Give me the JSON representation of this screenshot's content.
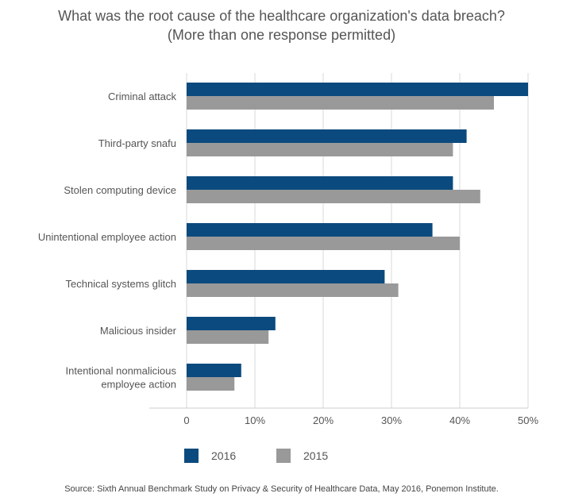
{
  "title_line1": "What was the root cause of the healthcare organization's data breach?",
  "title_line2": "(More than one response permitted)",
  "source": "Source: Sixth Annual Benchmark Study on Privacy & Security of Healthcare Data, May 2016, Ponemon Institute.",
  "colors": {
    "series_2016": "#0b4a7e",
    "series_2015": "#999999",
    "grid": "#d9d9d9",
    "axis": "#cccccc",
    "text": "#555555"
  },
  "legend": [
    {
      "label": "2016",
      "color": "#0b4a7e"
    },
    {
      "label": "2015",
      "color": "#999999"
    }
  ],
  "chart_data": {
    "type": "bar",
    "orientation": "horizontal",
    "title": "What was the root cause of the healthcare organization's data breach? (More than one response permitted)",
    "categories": [
      [
        "Criminal attack"
      ],
      [
        "Third-party snafu"
      ],
      [
        "Stolen computing device"
      ],
      [
        "Unintentional employee action"
      ],
      [
        "Technical systems glitch"
      ],
      [
        "Malicious insider"
      ],
      [
        "Intentional nonmalicious",
        "employee action"
      ]
    ],
    "series": [
      {
        "name": "2016",
        "values": [
          50,
          41,
          39,
          36,
          29,
          13,
          8
        ]
      },
      {
        "name": "2015",
        "values": [
          45,
          39,
          43,
          40,
          31,
          12,
          7
        ]
      }
    ],
    "xlim": [
      0,
      50
    ],
    "xticks": [
      "0",
      "10%",
      "20%",
      "30%",
      "40%",
      "50%"
    ],
    "xtick_values": [
      0,
      10,
      20,
      30,
      40,
      50
    ],
    "grid": true,
    "legend_position": "bottom-left"
  }
}
